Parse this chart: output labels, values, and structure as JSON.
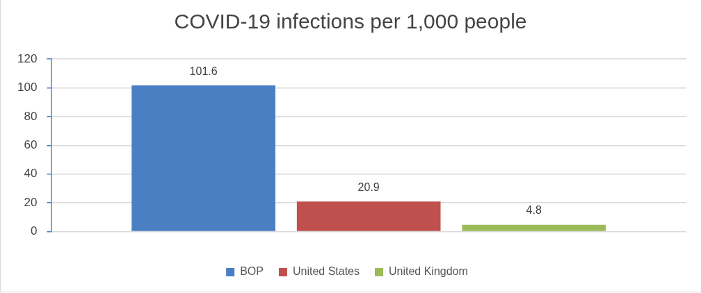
{
  "chart_data": {
    "type": "bar",
    "title": "COVID-19 infections per 1,000 people",
    "categories": [
      null
    ],
    "series": [
      {
        "name": "BOP",
        "color": "#4a7fc4",
        "values": [
          101.6
        ]
      },
      {
        "name": "United States",
        "color": "#c0504d",
        "values": [
          20.9
        ]
      },
      {
        "name": "United Kingdom",
        "color": "#9bbb59",
        "values": [
          4.8
        ]
      }
    ],
    "ylim": [
      0,
      120
    ],
    "yticks": [
      0,
      20,
      40,
      60,
      80,
      100,
      120
    ],
    "grid": "y",
    "legend": "bottom",
    "data_labels": true
  }
}
